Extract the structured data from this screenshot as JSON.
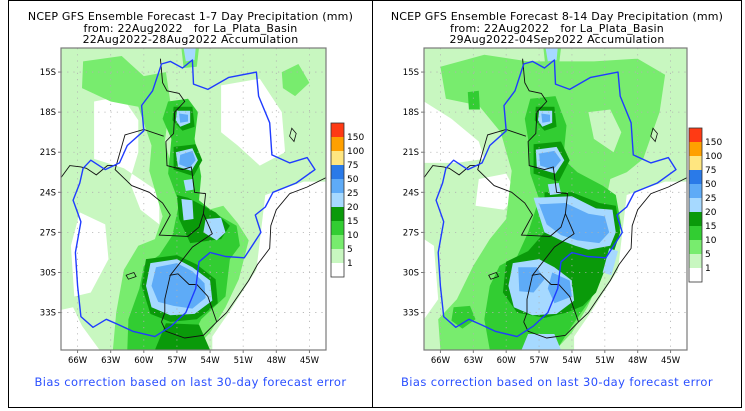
{
  "chart_data": [
    {
      "type": "heatmap",
      "title": "NCEP GFS Ensemble Forecast 1-7 Day Precipitation (mm)",
      "subtitle_lines": [
        "from: 22Aug2022   for La_Plata_Basin",
        "22Aug2022-28Aug2022 Accumulation"
      ],
      "xlabel": "",
      "ylabel": "",
      "x_ticks": [
        "66W",
        "63W",
        "60W",
        "57W",
        "54W",
        "51W",
        "48W",
        "45W"
      ],
      "y_ticks": [
        "15S",
        "18S",
        "21S",
        "24S",
        "27S",
        "30S",
        "33S"
      ],
      "xlim": [
        -67.5,
        -43.5
      ],
      "ylim": [
        -35.8,
        -13.2
      ],
      "grid": true,
      "colorbar": {
        "levels": [
          "1",
          "5",
          "10",
          "15",
          "20",
          "25",
          "50",
          "75",
          "100",
          "150"
        ],
        "colors": [
          "#ffffff",
          "#c8f7c0",
          "#78ec6e",
          "#32cd32",
          "#0a9a0a",
          "#a6d9ff",
          "#5eabf7",
          "#2a7ae8",
          "#ffe680",
          "#ffa000",
          "#ff3a14"
        ]
      },
      "regions": [
        {
          "name": "heavy-northern-cell",
          "center": [
            -56.2,
            -18.6
          ],
          "level": "25-50"
        },
        {
          "name": "heavy-central-cell",
          "center": [
            -55.8,
            -21.6
          ],
          "level": "25-50"
        },
        {
          "name": "heavy-southern-cell",
          "center": [
            -56.0,
            -31.2
          ],
          "level": "25-50"
        },
        {
          "name": "heavy-coastal-cell",
          "center": [
            -52.5,
            -26.3
          ],
          "level": "25-50"
        }
      ],
      "footer": "Bias correction based on last 30-day forecast error"
    },
    {
      "type": "heatmap",
      "title": "NCEP GFS Ensemble Forecast 8-14 Day Precipitation (mm)",
      "subtitle_lines": [
        "from: 22Aug2022   for La_Plata_Basin",
        "29Aug2022-04Sep2022 Accumulation"
      ],
      "xlabel": "",
      "ylabel": "",
      "x_ticks": [
        "66W",
        "63W",
        "60W",
        "57W",
        "54W",
        "51W",
        "48W",
        "45W"
      ],
      "y_ticks": [
        "15S",
        "18S",
        "21S",
        "24S",
        "27S",
        "30S",
        "33S"
      ],
      "xlim": [
        -67.5,
        -43.5
      ],
      "ylim": [
        -35.8,
        -13.2
      ],
      "grid": true,
      "colorbar": {
        "levels": [
          "1",
          "5",
          "10",
          "15",
          "20",
          "25",
          "50",
          "75",
          "100",
          "150"
        ],
        "colors": [
          "#ffffff",
          "#c8f7c0",
          "#78ec6e",
          "#32cd32",
          "#0a9a0a",
          "#a6d9ff",
          "#5eabf7",
          "#2a7ae8",
          "#ffe680",
          "#ffa000",
          "#ff3a14"
        ]
      },
      "regions": [
        {
          "name": "heavy-northern-cell",
          "center": [
            -56.2,
            -18.6
          ],
          "level": "25-50"
        },
        {
          "name": "heavy-central-cell",
          "center": [
            -55.8,
            -21.6
          ],
          "level": "25-50"
        },
        {
          "name": "heavy-southeast-band",
          "center": [
            -53.5,
            -26.5
          ],
          "level": "25-50"
        },
        {
          "name": "heavy-southern-cell",
          "center": [
            -56.0,
            -31.0
          ],
          "level": "25-50"
        }
      ],
      "footer": "Bias correction based on last 30-day forecast error"
    }
  ]
}
